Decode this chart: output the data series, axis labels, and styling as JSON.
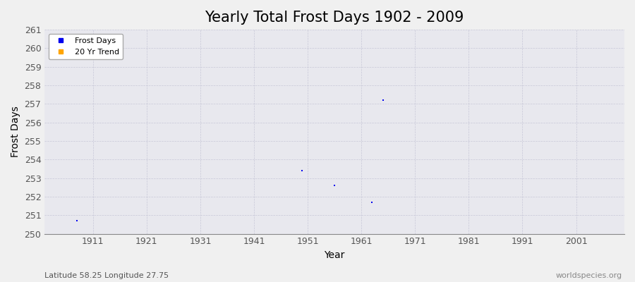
{
  "title": "Yearly Total Frost Days 1902 - 2009",
  "xlabel": "Year",
  "ylabel": "Frost Days",
  "background_color": "#f0f0f0",
  "plot_bg_color": "#e8e8ee",
  "grid_color": "#c8c8d8",
  "data_points": [
    {
      "year": 1908,
      "value": 250.7
    },
    {
      "year": 1950,
      "value": 253.4
    },
    {
      "year": 1956,
      "value": 252.6
    },
    {
      "year": 1963,
      "value": 251.7
    },
    {
      "year": 1965,
      "value": 257.2
    }
  ],
  "point_color": "#0000ee",
  "point_size": 3,
  "xlim": [
    1902,
    2010
  ],
  "ylim": [
    250,
    261
  ],
  "xticks": [
    1911,
    1921,
    1931,
    1941,
    1951,
    1961,
    1971,
    1981,
    1991,
    2001
  ],
  "yticks": [
    250,
    251,
    252,
    253,
    254,
    255,
    256,
    257,
    258,
    259,
    260,
    261
  ],
  "legend_frost_label": "Frost Days",
  "legend_trend_label": "20 Yr Trend",
  "legend_frost_color": "#0000ee",
  "legend_trend_color": "#ffa500",
  "subtitle_left": "Latitude 58.25 Longitude 27.75",
  "subtitle_right": "worldspecies.org",
  "title_fontsize": 15,
  "axis_label_fontsize": 10,
  "tick_fontsize": 9,
  "subtitle_fontsize": 8
}
